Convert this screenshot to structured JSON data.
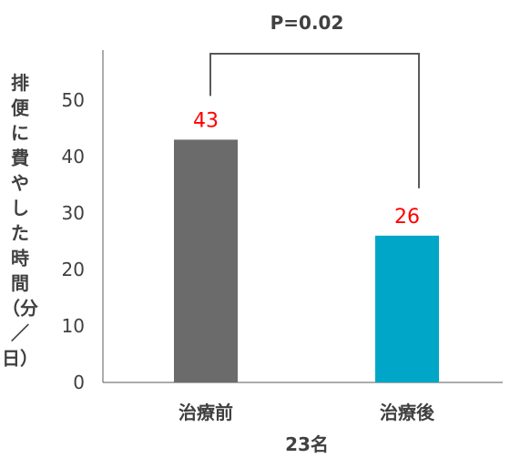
{
  "chart_data": {
    "type": "bar",
    "categories": [
      "治療前",
      "治療後"
    ],
    "values": [
      43,
      26
    ],
    "bar_colors": [
      "#6b6b6b",
      "#00a6c8"
    ],
    "data_label_color": "#ff0000",
    "ylabel_chars": [
      "排",
      "便",
      "に",
      "費",
      "や",
      "し",
      "た",
      "時",
      "間",
      "（分",
      "／",
      "日）"
    ],
    "xlabel": "23名",
    "ylim": [
      0,
      50
    ],
    "yticks": [
      0,
      10,
      20,
      30,
      40,
      50
    ],
    "annotation": "P=0.02",
    "grid": false,
    "legend": false
  }
}
